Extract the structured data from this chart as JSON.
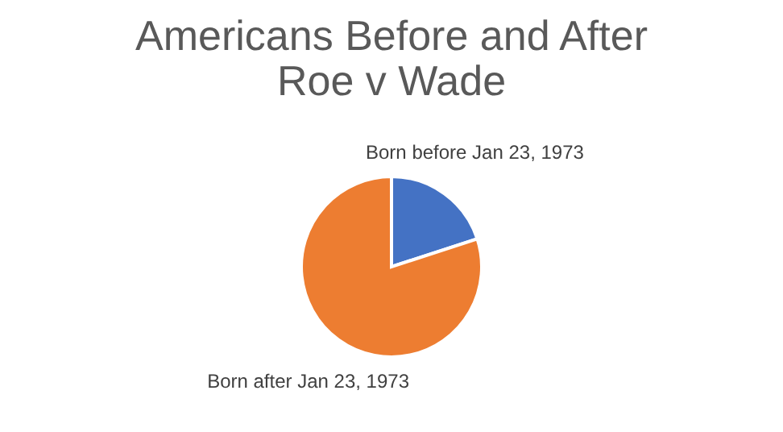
{
  "chart_data": {
    "type": "pie",
    "title": "Americans Before and After\nRoe v Wade",
    "categories": [
      "Born before Jan 23, 1973",
      "Born after Jan 23, 1973"
    ],
    "values": [
      20,
      80
    ],
    "colors": [
      "#4472c4",
      "#ed7d31"
    ],
    "legend": false
  }
}
